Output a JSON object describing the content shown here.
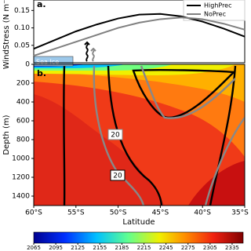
{
  "chart_data": [
    {
      "type": "line",
      "panel_label": "a.",
      "y_label": "WindStress (N m⁻²)",
      "xlim": [
        -60,
        -35
      ],
      "ylim": [
        0,
        0.18
      ],
      "yticks": [
        0.05,
        {
          "value": 0.1,
          "label": "0.10"
        },
        0.15
      ],
      "x": [
        -60,
        -57.5,
        -55,
        -52.5,
        -50,
        -47.5,
        -45,
        -42.5,
        -40,
        -37.5,
        -35
      ],
      "series": [
        {
          "name": "HighPrec",
          "color": "#000000",
          "values": [
            0.04,
            0.065,
            0.09,
            0.11,
            0.127,
            0.138,
            0.14,
            0.133,
            0.118,
            0.098,
            0.075
          ]
        },
        {
          "name": "NoPrec",
          "color": "#808080",
          "values": [
            0.02,
            0.04,
            0.06,
            0.08,
            0.1,
            0.115,
            0.125,
            0.13,
            0.125,
            0.112,
            0.095
          ]
        }
      ],
      "legend": "upper right"
    },
    {
      "type": "contour",
      "panel_label": "b.",
      "y_label": "Depth (m)",
      "x_label": "Latitude",
      "xlim": [
        -60,
        -35
      ],
      "ylim": [
        1500,
        0
      ],
      "xticks": [
        {
          "value": -60,
          "label": "60°S"
        },
        {
          "value": -55,
          "label": "55°S"
        },
        {
          "value": -50,
          "label": "50°S"
        },
        {
          "value": -45,
          "label": "45°S"
        },
        {
          "value": -40,
          "label": "40°S"
        },
        {
          "value": -35,
          "label": "35°S"
        }
      ],
      "yticks": [
        0,
        200,
        400,
        600,
        800,
        1000,
        1200,
        1400
      ],
      "annotations": [
        "Sea Ice",
        "20",
        "20"
      ],
      "colorbar": {
        "lim": [
          2065,
          2350
        ],
        "ticks": [
          2065,
          2095,
          2125,
          2155,
          2185,
          2215,
          2245,
          2275,
          2305,
          2335
        ]
      }
    }
  ]
}
